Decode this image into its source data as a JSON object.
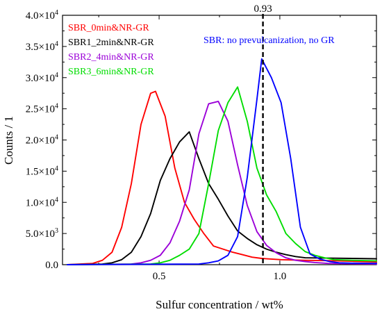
{
  "chart_data": {
    "type": "line",
    "xlabel": "Sulfur concentration / wt%",
    "ylabel": "Counts / 1",
    "xlim": [
      0.1,
      1.4
    ],
    "ylim": [
      0,
      40000
    ],
    "x_ticks": [
      {
        "value": 0.5,
        "label": "0.5"
      },
      {
        "value": 1.0,
        "label": "1.0"
      }
    ],
    "y_ticks": [
      {
        "value": 0,
        "mant": "0.0",
        "exp": ""
      },
      {
        "value": 5000,
        "mant": "5.0×10",
        "exp": "3"
      },
      {
        "value": 10000,
        "mant": "1.0×10",
        "exp": "4"
      },
      {
        "value": 15000,
        "mant": "1.5×10",
        "exp": "4"
      },
      {
        "value": 20000,
        "mant": "2.0×10",
        "exp": "4"
      },
      {
        "value": 25000,
        "mant": "2.5×10",
        "exp": "4"
      },
      {
        "value": 30000,
        "mant": "3.0×10",
        "exp": "4"
      },
      {
        "value": 35000,
        "mant": "3.5×10",
        "exp": "4"
      },
      {
        "value": 40000,
        "mant": "4.0×10",
        "exp": "4"
      }
    ],
    "grid": false,
    "legend_position": "top-left",
    "series": [
      {
        "name": "SBR_0min&NR-GR",
        "color": "#ff0000",
        "x": [
          0.12,
          0.225,
          0.265,
          0.305,
          0.345,
          0.385,
          0.425,
          0.465,
          0.485,
          0.525,
          0.565,
          0.605,
          0.645,
          0.685,
          0.725,
          0.765,
          0.805,
          0.845,
          0.885,
          0.925,
          0.965,
          1.005,
          1.1,
          1.2,
          1.3,
          1.4
        ],
        "y": [
          0,
          200,
          700,
          2000,
          6000,
          13000,
          22500,
          27500,
          27800,
          23800,
          15500,
          10000,
          7300,
          5000,
          3000,
          2500,
          2000,
          1600,
          1200,
          1000,
          900,
          800,
          700,
          650,
          550,
          450
        ]
      },
      {
        "name": "SBR1_2min&NR-GR",
        "color": "#000000",
        "x": [
          0.12,
          0.265,
          0.305,
          0.345,
          0.385,
          0.425,
          0.465,
          0.505,
          0.545,
          0.585,
          0.625,
          0.665,
          0.705,
          0.745,
          0.785,
          0.825,
          0.865,
          0.905,
          0.945,
          0.985,
          1.025,
          1.065,
          1.105,
          1.2,
          1.3,
          1.4
        ],
        "y": [
          0,
          100,
          300,
          800,
          2000,
          4500,
          8200,
          13500,
          17000,
          19700,
          21300,
          17000,
          13000,
          10500,
          7800,
          5400,
          4200,
          3200,
          2500,
          2000,
          1600,
          1300,
          1100,
          1050,
          1000,
          950
        ]
      },
      {
        "name": "SBR2_4min&NR-GR",
        "color": "#9b00d8",
        "x": [
          0.12,
          0.385,
          0.425,
          0.465,
          0.505,
          0.545,
          0.585,
          0.625,
          0.665,
          0.705,
          0.745,
          0.785,
          0.825,
          0.865,
          0.905,
          0.945,
          0.985,
          1.025,
          1.065,
          1.105,
          1.145,
          1.185,
          1.2,
          1.3,
          1.4
        ],
        "y": [
          0,
          100,
          300,
          700,
          1500,
          3500,
          7000,
          12000,
          21000,
          25800,
          26200,
          23000,
          16000,
          9500,
          5300,
          3100,
          1900,
          1100,
          700,
          500,
          350,
          250,
          200,
          150,
          100
        ]
      },
      {
        "name": "SBR3_6min&NR-GR",
        "color": "#00dd00",
        "x": [
          0.12,
          0.465,
          0.505,
          0.545,
          0.585,
          0.625,
          0.665,
          0.705,
          0.745,
          0.785,
          0.825,
          0.865,
          0.905,
          0.945,
          0.985,
          1.025,
          1.065,
          1.105,
          1.145,
          1.185,
          1.225,
          1.3,
          1.4
        ],
        "y": [
          0,
          100,
          300,
          700,
          1500,
          2500,
          5000,
          13000,
          21500,
          26000,
          28500,
          23000,
          15500,
          11200,
          8500,
          5000,
          3400,
          2100,
          1500,
          1100,
          800,
          700,
          600
        ]
      },
      {
        "name": "SBR: no prevulcanization, no GR",
        "color": "#0000ff",
        "x": [
          0.12,
          0.665,
          0.705,
          0.745,
          0.785,
          0.825,
          0.865,
          0.905,
          0.925,
          0.965,
          1.005,
          1.045,
          1.085,
          1.125,
          1.165,
          1.205,
          1.245,
          1.3,
          1.4
        ],
        "y": [
          0,
          100,
          300,
          600,
          1500,
          4500,
          14000,
          26500,
          33000,
          30000,
          26000,
          17000,
          6000,
          1700,
          900,
          500,
          300,
          250,
          200
        ]
      }
    ],
    "annotations": [
      {
        "type": "vertical-dashed-line",
        "x": 0.93,
        "text": "0.93"
      }
    ]
  }
}
